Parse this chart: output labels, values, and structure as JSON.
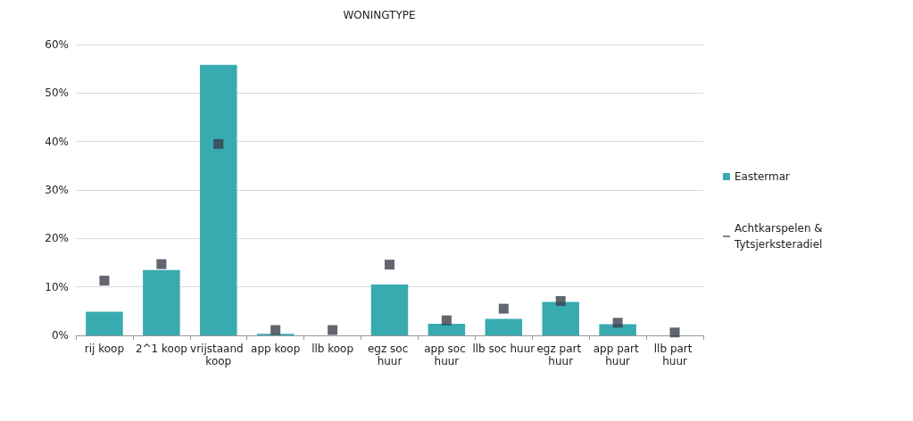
{
  "chart_data": {
    "type": "bar",
    "title": "WONINGTYPE",
    "categories": [
      "rij koop",
      "2^1 koop",
      "vrijstaand koop",
      "app koop",
      "llb koop",
      "egz soc huur",
      "app soc huur",
      "llb soc huur",
      "egz part huur",
      "app part huur",
      "llb part huur"
    ],
    "series": [
      {
        "name": "Eastermar",
        "color": "#38abb1",
        "values": [
          4.9,
          13.5,
          55.8,
          0.3,
          0,
          10.5,
          2.4,
          3.4,
          6.9,
          2.3,
          0
        ]
      },
      {
        "name": "Achtkarspelen & Tytsjerksteradiel",
        "type": "scatter",
        "color": "#3a3f4b",
        "values": [
          11.3,
          14.7,
          39.5,
          1.1,
          1.1,
          14.6,
          3.1,
          5.5,
          7.1,
          2.6,
          0.6
        ]
      }
    ],
    "ylim": [
      0,
      60
    ],
    "yticks": [
      {
        "value": 0,
        "label": "0%"
      },
      {
        "value": 10,
        "label": "10%"
      },
      {
        "value": 20,
        "label": "20%"
      },
      {
        "value": 30,
        "label": "30%"
      },
      {
        "value": 40,
        "label": "40%"
      },
      {
        "value": 50,
        "label": "50%"
      },
      {
        "value": 60,
        "label": "60%"
      }
    ],
    "grid": "y",
    "legend": "right",
    "marker": "square"
  }
}
